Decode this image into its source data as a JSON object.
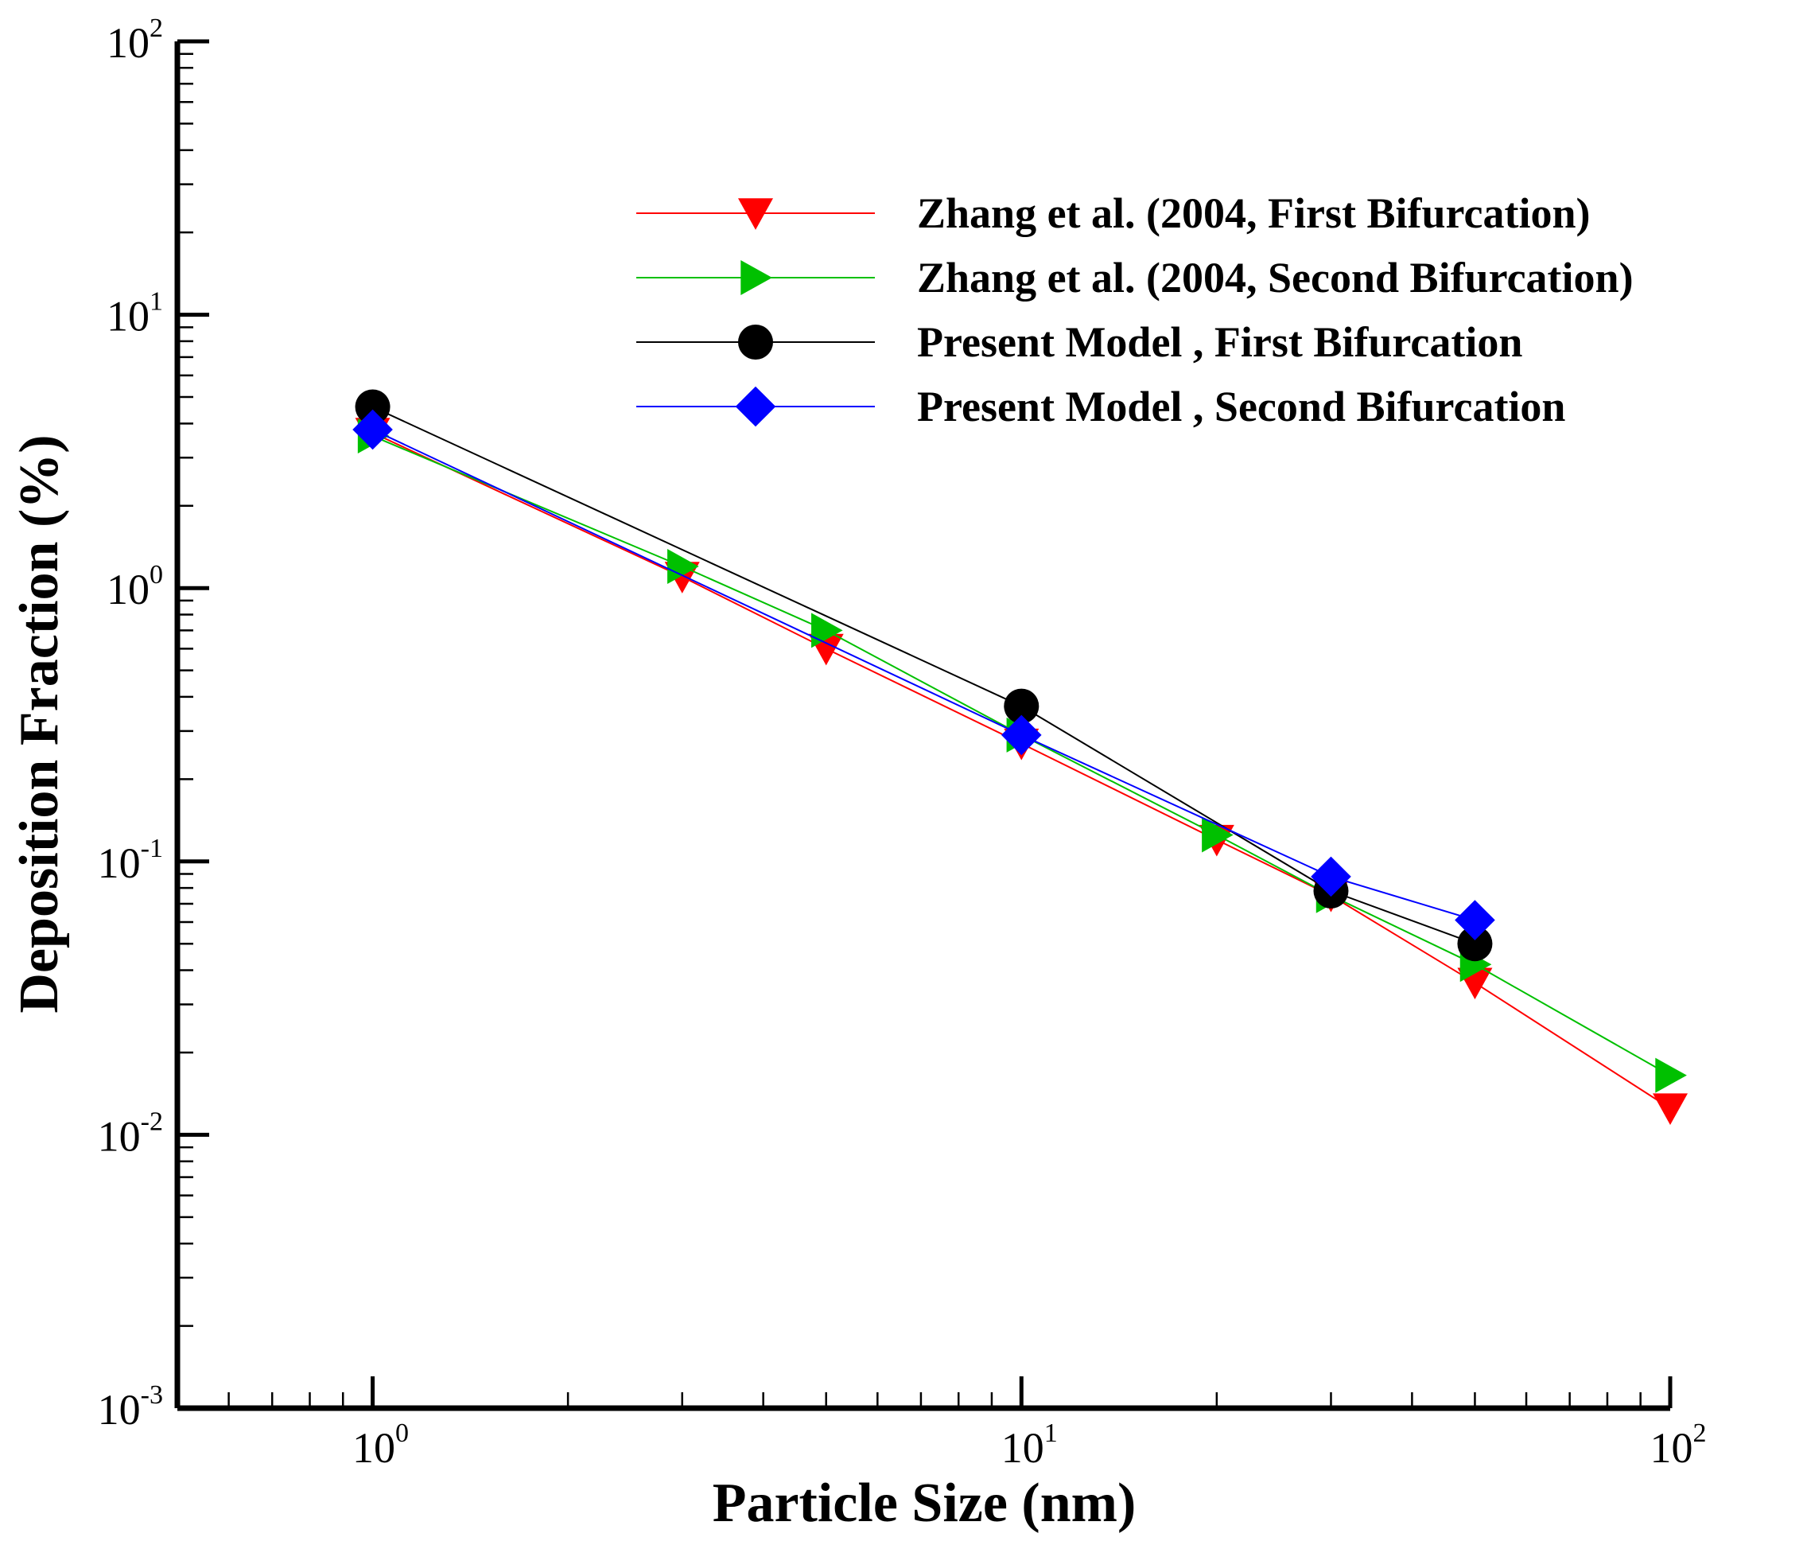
{
  "chart_data": {
    "type": "line",
    "x_scale": "log",
    "y_scale": "log",
    "xlabel": "Particle Size (nm)",
    "ylabel": "Deposition Fraction (%)",
    "xlim": [
      0.5,
      100
    ],
    "ylim": [
      0.001,
      100
    ],
    "x_major_ticks": [
      {
        "value": 1,
        "base": "10",
        "exp": "0"
      },
      {
        "value": 10,
        "base": "10",
        "exp": "1"
      },
      {
        "value": 100,
        "base": "10",
        "exp": "2"
      }
    ],
    "y_major_ticks": [
      {
        "value": 0.001,
        "base": "10",
        "exp": "-3"
      },
      {
        "value": 0.01,
        "base": "10",
        "exp": "-2"
      },
      {
        "value": 0.1,
        "base": "10",
        "exp": "-1"
      },
      {
        "value": 1,
        "base": "10",
        "exp": "0"
      },
      {
        "value": 10,
        "base": "10",
        "exp": "1"
      },
      {
        "value": 100,
        "base": "10",
        "exp": "2"
      }
    ],
    "legend_position": "top-right",
    "series": [
      {
        "name": "Zhang et al. (2004, First Bifurcation)",
        "color": "#ff0000",
        "marker": "triangle-down",
        "x": [
          1,
          3,
          5,
          10,
          20,
          30,
          50,
          100
        ],
        "y": [
          3.7,
          1.1,
          0.6,
          0.27,
          0.12,
          0.075,
          0.036,
          0.0125
        ]
      },
      {
        "name": "Zhang et al. (2004, Second Bifurcation)",
        "color": "#00c000",
        "marker": "triangle-right",
        "x": [
          1,
          3,
          5,
          10,
          20,
          30,
          50,
          100
        ],
        "y": [
          3.6,
          1.2,
          0.7,
          0.29,
          0.125,
          0.075,
          0.042,
          0.0165
        ]
      },
      {
        "name": "Present Model , First Bifurcation",
        "color": "#000000",
        "marker": "circle",
        "x": [
          1,
          10,
          30,
          50
        ],
        "y": [
          4.6,
          0.37,
          0.078,
          0.05
        ]
      },
      {
        "name": "Present Model , Second Bifurcation",
        "color": "#0000ff",
        "marker": "diamond",
        "x": [
          1,
          10,
          30,
          50
        ],
        "y": [
          3.8,
          0.29,
          0.088,
          0.061
        ]
      }
    ]
  }
}
